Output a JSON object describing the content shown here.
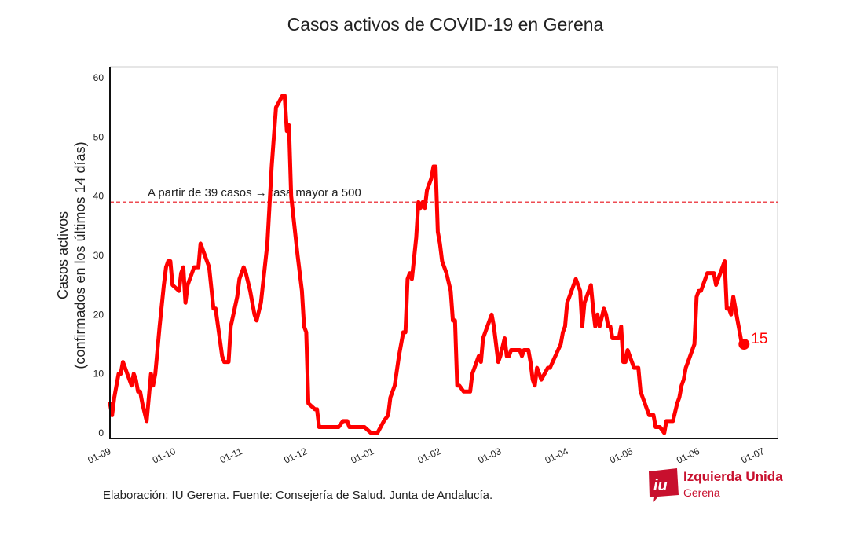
{
  "title": "Casos activos de COVID-19 en Gerena",
  "source_note": "Elaboración: IU Gerena. Fuente: Consejería de Salud. Junta de Andalucía.",
  "logo": {
    "name": "Izquierda Unida",
    "sub": "Gerena",
    "mark": "iu",
    "color": "#c8102e"
  },
  "chart_data": {
    "type": "line",
    "title": "Casos activos de COVID-19 en Gerena",
    "ylabel_line1": "Casos activos",
    "ylabel_line2": "(confirmados en los últimos 14 días)",
    "ylim": [
      -1,
      62
    ],
    "xlim_days": [
      0,
      302
    ],
    "y_ticks": [
      0,
      10,
      20,
      30,
      40,
      50,
      60
    ],
    "x_ticks": [
      {
        "label": "01-09",
        "day": 0
      },
      {
        "label": "01-10",
        "day": 30
      },
      {
        "label": "01-11",
        "day": 61
      },
      {
        "label": "01-12",
        "day": 91
      },
      {
        "label": "01-01",
        "day": 122
      },
      {
        "label": "01-02",
        "day": 153
      },
      {
        "label": "01-03",
        "day": 181
      },
      {
        "label": "01-04",
        "day": 212
      },
      {
        "label": "01-05",
        "day": 242
      },
      {
        "label": "01-06",
        "day": 273
      },
      {
        "label": "01-07",
        "day": 303
      }
    ],
    "threshold": {
      "value": 39,
      "label": "A partir de 39 casos → tasa mayor a 500",
      "color": "#e8101a"
    },
    "series": [
      {
        "color": "#ff0000",
        "points": [
          [
            0,
            5
          ],
          [
            1,
            3
          ],
          [
            2,
            6
          ],
          [
            4,
            10
          ],
          [
            5,
            10
          ],
          [
            6,
            12
          ],
          [
            8,
            10
          ],
          [
            10,
            8
          ],
          [
            11,
            10
          ],
          [
            12,
            9
          ],
          [
            13,
            7
          ],
          [
            14,
            7
          ],
          [
            15,
            5
          ],
          [
            17,
            2
          ],
          [
            19,
            10
          ],
          [
            20,
            8
          ],
          [
            21,
            10
          ],
          [
            23,
            18
          ],
          [
            25,
            25
          ],
          [
            26,
            28
          ],
          [
            27,
            29
          ],
          [
            28,
            29
          ],
          [
            29,
            25
          ],
          [
            32,
            24
          ],
          [
            33,
            27
          ],
          [
            34,
            28
          ],
          [
            35,
            22
          ],
          [
            36,
            25
          ],
          [
            39,
            28
          ],
          [
            41,
            28
          ],
          [
            42,
            32
          ],
          [
            44,
            30
          ],
          [
            46,
            28
          ],
          [
            48,
            21
          ],
          [
            49,
            21
          ],
          [
            52,
            13
          ],
          [
            53,
            12
          ],
          [
            55,
            12
          ],
          [
            56,
            18
          ],
          [
            59,
            23
          ],
          [
            60,
            26
          ],
          [
            62,
            28
          ],
          [
            63,
            27
          ],
          [
            65,
            24
          ],
          [
            67,
            20
          ],
          [
            68,
            19
          ],
          [
            70,
            22
          ],
          [
            73,
            32
          ],
          [
            75,
            45
          ],
          [
            77,
            55
          ],
          [
            80,
            57
          ],
          [
            81,
            57
          ],
          [
            82,
            51
          ],
          [
            83,
            52
          ],
          [
            84,
            40
          ],
          [
            87,
            30
          ],
          [
            89,
            24
          ],
          [
            90,
            18
          ],
          [
            91,
            17
          ],
          [
            92,
            5
          ],
          [
            95,
            4
          ],
          [
            96,
            4
          ],
          [
            97,
            1
          ],
          [
            101,
            1
          ],
          [
            106,
            1
          ],
          [
            108,
            2
          ],
          [
            110,
            2
          ],
          [
            111,
            1
          ],
          [
            115,
            1
          ],
          [
            118,
            1
          ],
          [
            121,
            0
          ],
          [
            124,
            0
          ],
          [
            127,
            2
          ],
          [
            129,
            3
          ],
          [
            130,
            6
          ],
          [
            132,
            8
          ],
          [
            134,
            13
          ],
          [
            136,
            17
          ],
          [
            137,
            17
          ],
          [
            138,
            26
          ],
          [
            139,
            27
          ],
          [
            140,
            26
          ],
          [
            142,
            33
          ],
          [
            143,
            39
          ],
          [
            144,
            38
          ],
          [
            145,
            39
          ],
          [
            146,
            38
          ],
          [
            147,
            41
          ],
          [
            149,
            43
          ],
          [
            150,
            45
          ],
          [
            151,
            45
          ],
          [
            152,
            34
          ],
          [
            153,
            32
          ],
          [
            154,
            29
          ],
          [
            156,
            27
          ],
          [
            158,
            24
          ],
          [
            159,
            19
          ],
          [
            160,
            19
          ],
          [
            161,
            8
          ],
          [
            162,
            8
          ],
          [
            164,
            7
          ],
          [
            167,
            7
          ],
          [
            168,
            10
          ],
          [
            170,
            12
          ],
          [
            171,
            13
          ],
          [
            172,
            12
          ],
          [
            173,
            16
          ],
          [
            175,
            18
          ],
          [
            177,
            20
          ],
          [
            178,
            18
          ],
          [
            180,
            12
          ],
          [
            181,
            13
          ],
          [
            183,
            16
          ],
          [
            184,
            13
          ],
          [
            185,
            13
          ],
          [
            186,
            14
          ],
          [
            190,
            14
          ],
          [
            191,
            13
          ],
          [
            192,
            14
          ],
          [
            194,
            14
          ],
          [
            195,
            12
          ],
          [
            196,
            9
          ],
          [
            197,
            8
          ],
          [
            198,
            11
          ],
          [
            200,
            9
          ],
          [
            203,
            11
          ],
          [
            204,
            11
          ],
          [
            209,
            15
          ],
          [
            210,
            17
          ],
          [
            211,
            18
          ],
          [
            212,
            22
          ],
          [
            213,
            23
          ],
          [
            214,
            24
          ],
          [
            216,
            26
          ],
          [
            218,
            24
          ],
          [
            219,
            18
          ],
          [
            220,
            22
          ],
          [
            222,
            24
          ],
          [
            223,
            25
          ],
          [
            224,
            21
          ],
          [
            225,
            18
          ],
          [
            226,
            20
          ],
          [
            227,
            18
          ],
          [
            229,
            21
          ],
          [
            230,
            20
          ],
          [
            231,
            18
          ],
          [
            232,
            18
          ],
          [
            233,
            16
          ],
          [
            236,
            16
          ],
          [
            237,
            18
          ],
          [
            238,
            12
          ],
          [
            239,
            12
          ],
          [
            240,
            14
          ],
          [
            242,
            12
          ],
          [
            243,
            11
          ],
          [
            245,
            11
          ],
          [
            246,
            7
          ],
          [
            248,
            5
          ],
          [
            249,
            4
          ],
          [
            250,
            3
          ],
          [
            252,
            3
          ],
          [
            253,
            1
          ],
          [
            255,
            1
          ],
          [
            257,
            0
          ],
          [
            258,
            2
          ],
          [
            261,
            2
          ],
          [
            263,
            5
          ],
          [
            264,
            6
          ],
          [
            265,
            8
          ],
          [
            266,
            9
          ],
          [
            267,
            11
          ],
          [
            268,
            12
          ],
          [
            271,
            15
          ],
          [
            272,
            23
          ],
          [
            273,
            24
          ],
          [
            274,
            24
          ],
          [
            276,
            26
          ],
          [
            277,
            27
          ],
          [
            280,
            27
          ],
          [
            281,
            25
          ],
          [
            282,
            26
          ],
          [
            283,
            27
          ],
          [
            284,
            28
          ],
          [
            285,
            29
          ],
          [
            286,
            21
          ],
          [
            287,
            21
          ],
          [
            288,
            20
          ],
          [
            289,
            23
          ],
          [
            291,
            19
          ],
          [
            292,
            17
          ],
          [
            293,
            15
          ],
          [
            294,
            15
          ]
        ],
        "end_label": "15"
      }
    ],
    "grid": true,
    "legend": "none"
  }
}
